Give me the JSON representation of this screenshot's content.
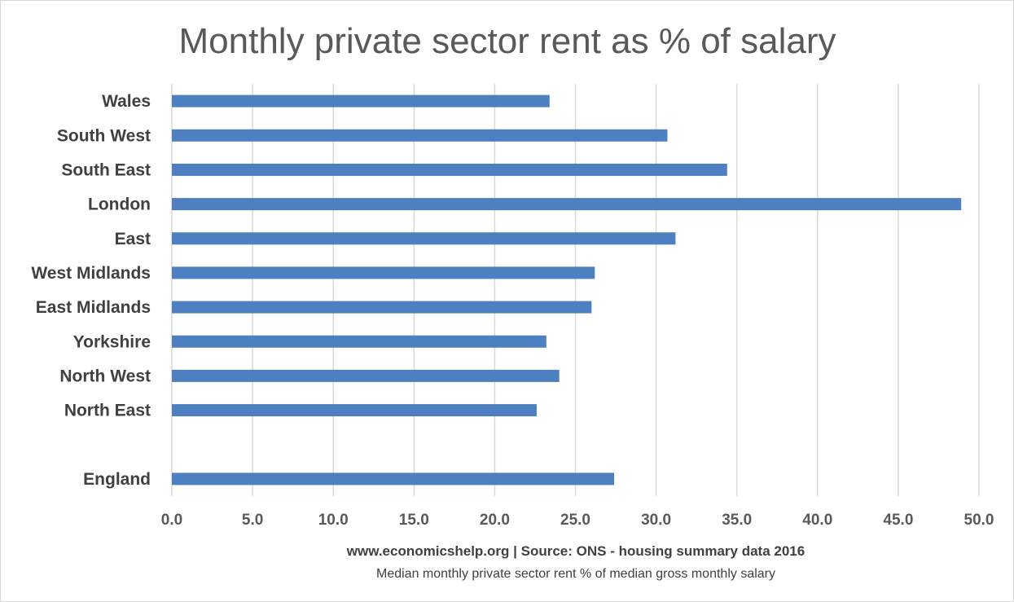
{
  "chart_data": {
    "type": "bar",
    "orientation": "horizontal",
    "title": "Monthly private sector rent as % of salary",
    "source": "www.economicshelp.org | Source: ONS - housing summary  data 2016",
    "xlabel": "Median monthly private sector rent % of median gross monthly salary",
    "ylabel": "",
    "xlim": [
      0,
      50
    ],
    "ticks": [
      "0.0",
      "5.0",
      "10.0",
      "15.0",
      "20.0",
      "25.0",
      "30.0",
      "35.0",
      "40.0",
      "45.0",
      "50.0"
    ],
    "grid": true,
    "legend": "none",
    "color": "#4e7fc0",
    "categories": [
      "Wales",
      "South West",
      "South East",
      "London",
      "East",
      "West Midlands",
      "East Midlands",
      "Yorkshire",
      "North West",
      "North East",
      "",
      "England"
    ],
    "values": [
      23.4,
      30.7,
      34.4,
      48.9,
      31.2,
      26.2,
      26.0,
      23.2,
      24.0,
      22.6,
      null,
      27.4
    ]
  }
}
